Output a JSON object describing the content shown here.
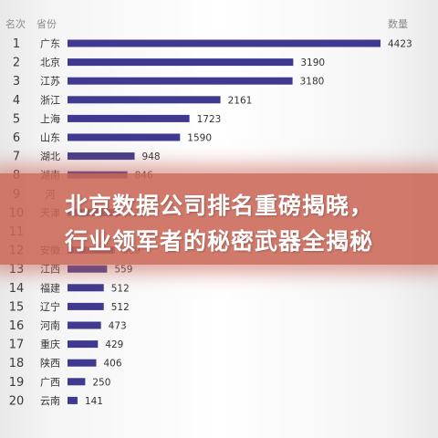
{
  "headline": {
    "line1": "北京数据公司排名重磅揭晓，",
    "line2": "行业领军者的秘密武器全揭秘"
  },
  "chart_data": {
    "type": "bar",
    "orientation": "horizontal",
    "columns": {
      "rank": "名次",
      "category": "省份",
      "value": "数量"
    },
    "ranks": [
      "1",
      "2",
      "3",
      "4",
      "5",
      "6",
      "7",
      "8",
      "9",
      "10",
      "11",
      "12",
      "13",
      "14",
      "15",
      "16",
      "17",
      "18",
      "19",
      "20"
    ],
    "categories": [
      "广东",
      "北京",
      "江苏",
      "浙江",
      "上海",
      "山东",
      "湖北",
      "湖南",
      "河",
      "天津",
      "",
      "安徽",
      "江西",
      "福建",
      "辽宁",
      "河南",
      "重庆",
      "陕西",
      "广西",
      "云南"
    ],
    "values": [
      4423,
      3190,
      3180,
      2161,
      1723,
      1590,
      948,
      846,
      null,
      738,
      null,
      669,
      559,
      512,
      512,
      473,
      429,
      406,
      250,
      141
    ],
    "value_labels": [
      "4423",
      "3190",
      "3180",
      "2161",
      "1723",
      "1590",
      "948",
      "846",
      "",
      "738",
      "",
      "669",
      "559",
      "512",
      "512",
      "473",
      "429",
      "406",
      "250",
      "141"
    ],
    "xlim": [
      0,
      4423
    ],
    "bar_color": "#3f3a8f",
    "grid": false
  },
  "colors": {
    "banner": "#cb6858",
    "banner_text": "#ffffff"
  }
}
